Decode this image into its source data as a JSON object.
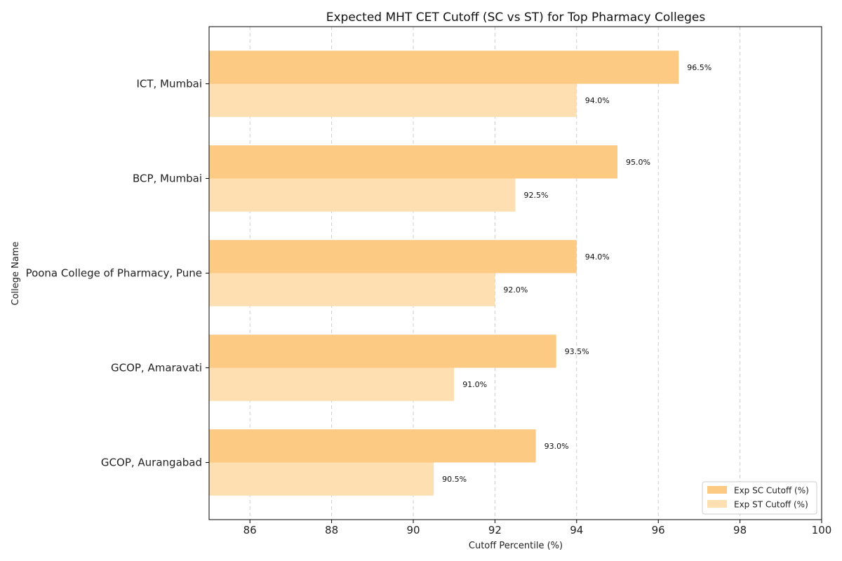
{
  "chart_data": {
    "type": "bar",
    "orientation": "horizontal",
    "title": "Expected MHT CET Cutoff (SC vs ST) for Top Pharmacy Colleges",
    "xlabel": "Cutoff Percentile (%)",
    "ylabel": "College Name",
    "xlim": [
      85,
      100
    ],
    "xticks": [
      "86",
      "88",
      "90",
      "92",
      "94",
      "96",
      "98",
      "100"
    ],
    "grid": "x-dashed",
    "legend_position": "bottom-right",
    "categories": [
      "ICT, Mumbai",
      "BCP, Mumbai",
      "Poona College of Pharmacy, Pune",
      "GCOP, Amaravati",
      "GCOP, Aurangabad"
    ],
    "series": [
      {
        "name": "Exp SC Cutoff (%)",
        "color": "#fdca84",
        "values": [
          96.5,
          95.0,
          94.0,
          93.5,
          93.0
        ],
        "labels": [
          "96.5%",
          "95.0%",
          "94.0%",
          "93.5%",
          "93.0%"
        ]
      },
      {
        "name": "Exp ST Cutoff (%)",
        "color": "#fedfb2",
        "values": [
          94.0,
          92.5,
          92.0,
          91.0,
          90.5
        ],
        "labels": [
          "94.0%",
          "92.5%",
          "92.0%",
          "91.0%",
          "90.5%"
        ]
      }
    ]
  }
}
